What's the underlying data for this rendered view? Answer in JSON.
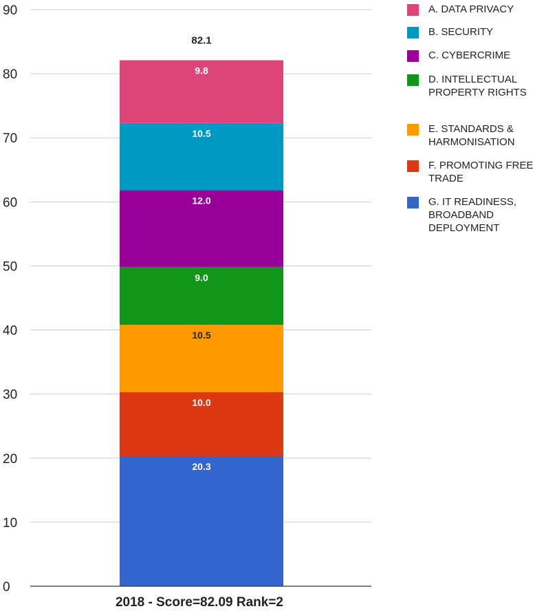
{
  "chart_data": {
    "type": "bar",
    "stacked": true,
    "categories": [
      "2018 - Score=82.09 Rank=2"
    ],
    "series": [
      {
        "name": "G. IT READINESS, BROADBAND DEPLOYMENT",
        "values": [
          20.3
        ],
        "color": "#3366cc",
        "label": "20.3",
        "label_color": "#ffffff"
      },
      {
        "name": "F. PROMOTING FREE TRADE",
        "values": [
          10.0
        ],
        "color": "#dc3912",
        "label": "10.0",
        "label_color": "#ffffff"
      },
      {
        "name": "E. STANDARDS & HARMONISATION",
        "values": [
          10.5
        ],
        "color": "#ff9900",
        "label": "10.5",
        "label_color": "#222222"
      },
      {
        "name": "D. INTELLECTUAL PROPERTY RIGHTS",
        "values": [
          9.0
        ],
        "color": "#109618",
        "label": "9.0",
        "label_color": "#ffffff"
      },
      {
        "name": "C. CYBERCRIME",
        "values": [
          12.0
        ],
        "color": "#990099",
        "label": "12.0",
        "label_color": "#ffffff"
      },
      {
        "name": "B. SECURITY",
        "values": [
          10.5
        ],
        "color": "#0099c6",
        "label": "10.5",
        "label_color": "#ffffff"
      },
      {
        "name": "A. DATA PRIVACY",
        "values": [
          9.8
        ],
        "color": "#dd4477",
        "label": "9.8",
        "label_color": "#ffffff"
      }
    ],
    "total_label": "82.1",
    "ylim": [
      0,
      90
    ],
    "yticks": [
      0,
      10,
      20,
      30,
      40,
      50,
      60,
      70,
      80,
      90
    ],
    "grid": true,
    "legend_position": "right",
    "title": "",
    "xlabel": "",
    "ylabel": ""
  },
  "legend": {
    "items": [
      {
        "label": "A. DATA PRIVACY",
        "color": "#dd4477"
      },
      {
        "label": "B. SECURITY",
        "color": "#0099c6"
      },
      {
        "label": "C. CYBERCRIME",
        "color": "#990099"
      },
      {
        "label": "D. INTELLECTUAL PROPERTY RIGHTS",
        "color": "#109618"
      },
      {
        "label": "E. STANDARDS & HARMONISATION",
        "color": "#ff9900"
      },
      {
        "label": "F. PROMOTING FREE TRADE",
        "color": "#dc3912"
      },
      {
        "label": "G. IT READINESS, BROADBAND DEPLOYMENT",
        "color": "#3366cc"
      }
    ]
  }
}
